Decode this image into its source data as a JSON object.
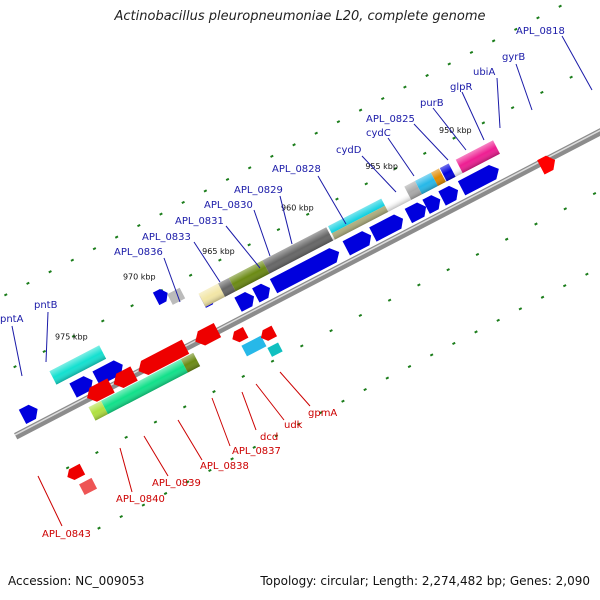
{
  "title": "Actinobacillus pleuropneumoniae L20, complete genome",
  "footer": {
    "accession": "Accession: NC_009053",
    "summary": "Topology: circular; Length: 2,274,482 bp; Genes: 2,090"
  },
  "ticks": [
    "950 kbp",
    "955 kbp",
    "960 kbp",
    "965 kbp",
    "970 kbp",
    "975 kbp"
  ],
  "genes_top": [
    "APL_0818",
    "gyrB",
    "ubiA",
    "glpR",
    "purB",
    "APL_0825",
    "cydC",
    "cydD",
    "APL_0828",
    "APL_0829",
    "APL_0830",
    "APL_0831",
    "APL_0833",
    "APL_0836",
    "pntB",
    "pntA"
  ],
  "genes_bottom": [
    "gpmA",
    "udk",
    "dcd",
    "APL_0837",
    "APL_0838",
    "APL_0839",
    "APL_0840",
    "APL_0843"
  ],
  "colors": {
    "forward_label": "#1a1aa8",
    "reverse_label": "#cc0000",
    "cds": "#0000dd",
    "backbone": "#8c8c8c",
    "tick": "#1b7d1b"
  }
}
